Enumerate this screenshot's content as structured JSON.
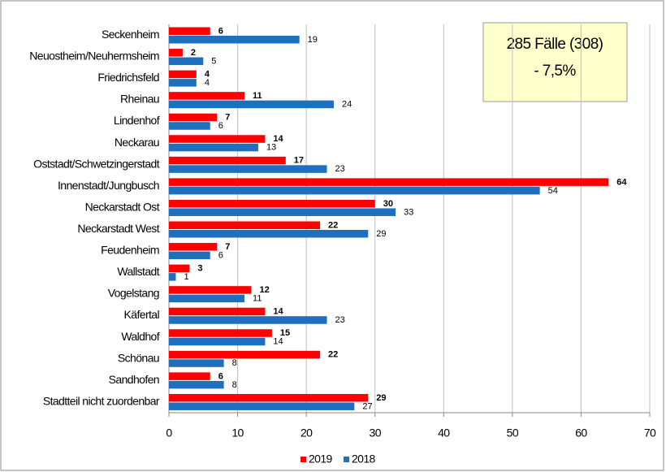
{
  "chart_data": {
    "type": "bar",
    "orientation": "horizontal",
    "categories": [
      "Seckenheim",
      "Neuostheim/Neuhermsheim",
      "Friedrichsfeld",
      "Rheinau",
      "Lindenhof",
      "Neckarau",
      "Oststadt/Schwetzingerstadt",
      "Innenstadt/Jungbusch",
      "Neckarstadt Ost",
      "Neckarstadt West",
      "Feudenheim",
      "Wallstadt",
      "Vogelstang",
      "Käfertal",
      "Waldhof",
      "Schönau",
      "Sandhofen",
      "Stadtteil nicht zuordenbar"
    ],
    "series": [
      {
        "name": "2019",
        "color": "#ff0000",
        "values": [
          6,
          2,
          4,
          11,
          7,
          14,
          17,
          64,
          30,
          22,
          7,
          3,
          12,
          14,
          15,
          22,
          6,
          29
        ]
      },
      {
        "name": "2018",
        "color": "#1f6fbf",
        "values": [
          19,
          5,
          4,
          24,
          6,
          13,
          23,
          54,
          33,
          29,
          6,
          1,
          11,
          23,
          14,
          8,
          8,
          27
        ]
      }
    ],
    "xlim": [
      0,
      70
    ],
    "xticks": [
      0,
      10,
      20,
      30,
      40,
      50,
      60,
      70
    ],
    "grid": true,
    "legend": "bottom",
    "annotations": [
      "285 Fälle (308)",
      "- 7,5%"
    ]
  }
}
